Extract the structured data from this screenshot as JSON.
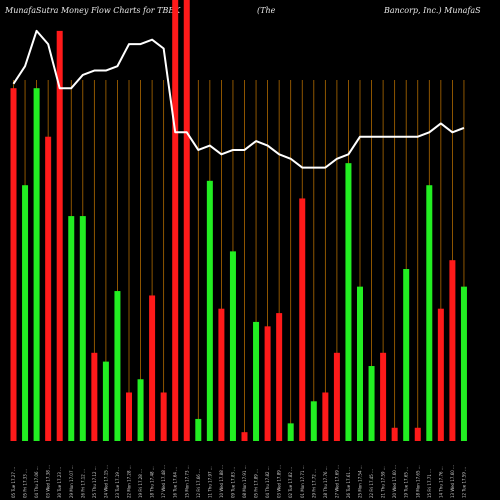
{
  "title_segments": [
    "MunafaSutra  Money Flow  Charts for TBBK",
    "(The",
    "Bancorp,  Inc.)  MunafaS"
  ],
  "colors": {
    "background": "#000000",
    "up": "#22ee22",
    "down": "#ff1a1a",
    "line": "#ffffff",
    "grid": "#b06a00",
    "text": "#e8e8e8"
  },
  "chart_data": {
    "type": "bar",
    "title": "MunafaSutra  Money Flow  Charts for TBBK (The Bancorp,  Inc.) MunafaS",
    "xlabel": "",
    "ylabel": "",
    "ylim": [
      0,
      100
    ],
    "grid": true,
    "categories": [
      "05 Tue 17.27 ...",
      "05 Fri 17.33 ...",
      "04 Thu 17.06 ...",
      "03 Wed 17.38 ...",
      "30 Tue 17.23 ...",
      "29 Mon 17.07 ...",
      "26 Fri 17.12 ...",
      "25 Thu 17.12 ...",
      "24 Wed 17.15 ...",
      "23 Tue 17.19 ...",
      "22 Mon 17.28 ...",
      "19 Fri 17.28 ...",
      "18 Thu 17.48 ...",
      "17 Wed 17.48 ...",
      "16 Tue 17.64 ...",
      "15 Mon 17.73 ...",
      "12 Fri 17.66 ...",
      "11 Thu 17.97 ...",
      "10 Wed 17.88 ...",
      "09 Tue 17.83 ...",
      "08 Mon 17.91 ...",
      "05 Fri 17.89 ...",
      "04 Thu 17.82 ...",
      "03 Wed 17.89 ...",
      "02 Tue 17.82 ...",
      "01 Mon 17.71 ...",
      "29 Fri 17.72 ...",
      "28 Thu 17.76 ...",
      "27 Wed 17.69 ...",
      "26 Tue 17.61 ...",
      "25 Mon 17.54 ...",
      "22 Fri 17.45 ...",
      "21 Thu 17.59 ...",
      "20 Wed 17.60 ...",
      "19 Tue 17.65 ...",
      "18 Mon 17.65 ...",
      "15 Fri 17.71 ...",
      "14 Thu 17.76 ...",
      "13 Wed 17.60 ...",
      "12 Tue 17.59 ..."
    ],
    "series": [
      {
        "type": "bar",
        "values": [
          80,
          58,
          80,
          69,
          93,
          51,
          51,
          20,
          18,
          34,
          11,
          14,
          33,
          11,
          100,
          100,
          5,
          59,
          30,
          43,
          2,
          27,
          26,
          29,
          4,
          55,
          9,
          11,
          20,
          63,
          35,
          17,
          20,
          3,
          39,
          3,
          58,
          30,
          41,
          35
        ],
        "colors": [
          "red",
          "green",
          "green",
          "red",
          "red",
          "green",
          "green",
          "red",
          "green",
          "green",
          "red",
          "green",
          "red",
          "red",
          "red",
          "red",
          "green",
          "green",
          "red",
          "green",
          "red",
          "green",
          "red",
          "red",
          "green",
          "red",
          "green",
          "red",
          "red",
          "green",
          "green",
          "green",
          "red",
          "red",
          "green",
          "red",
          "green",
          "red",
          "red",
          "green"
        ]
      },
      {
        "type": "line",
        "values": [
          81,
          85,
          93,
          90,
          80,
          80,
          83,
          84,
          84,
          85,
          90,
          90,
          91,
          89,
          70,
          70,
          66,
          67,
          65,
          66,
          66,
          68,
          67,
          65,
          64,
          62,
          62,
          62,
          64,
          65,
          69,
          69,
          69,
          69,
          69,
          69,
          70,
          72,
          70,
          71
        ]
      }
    ]
  }
}
